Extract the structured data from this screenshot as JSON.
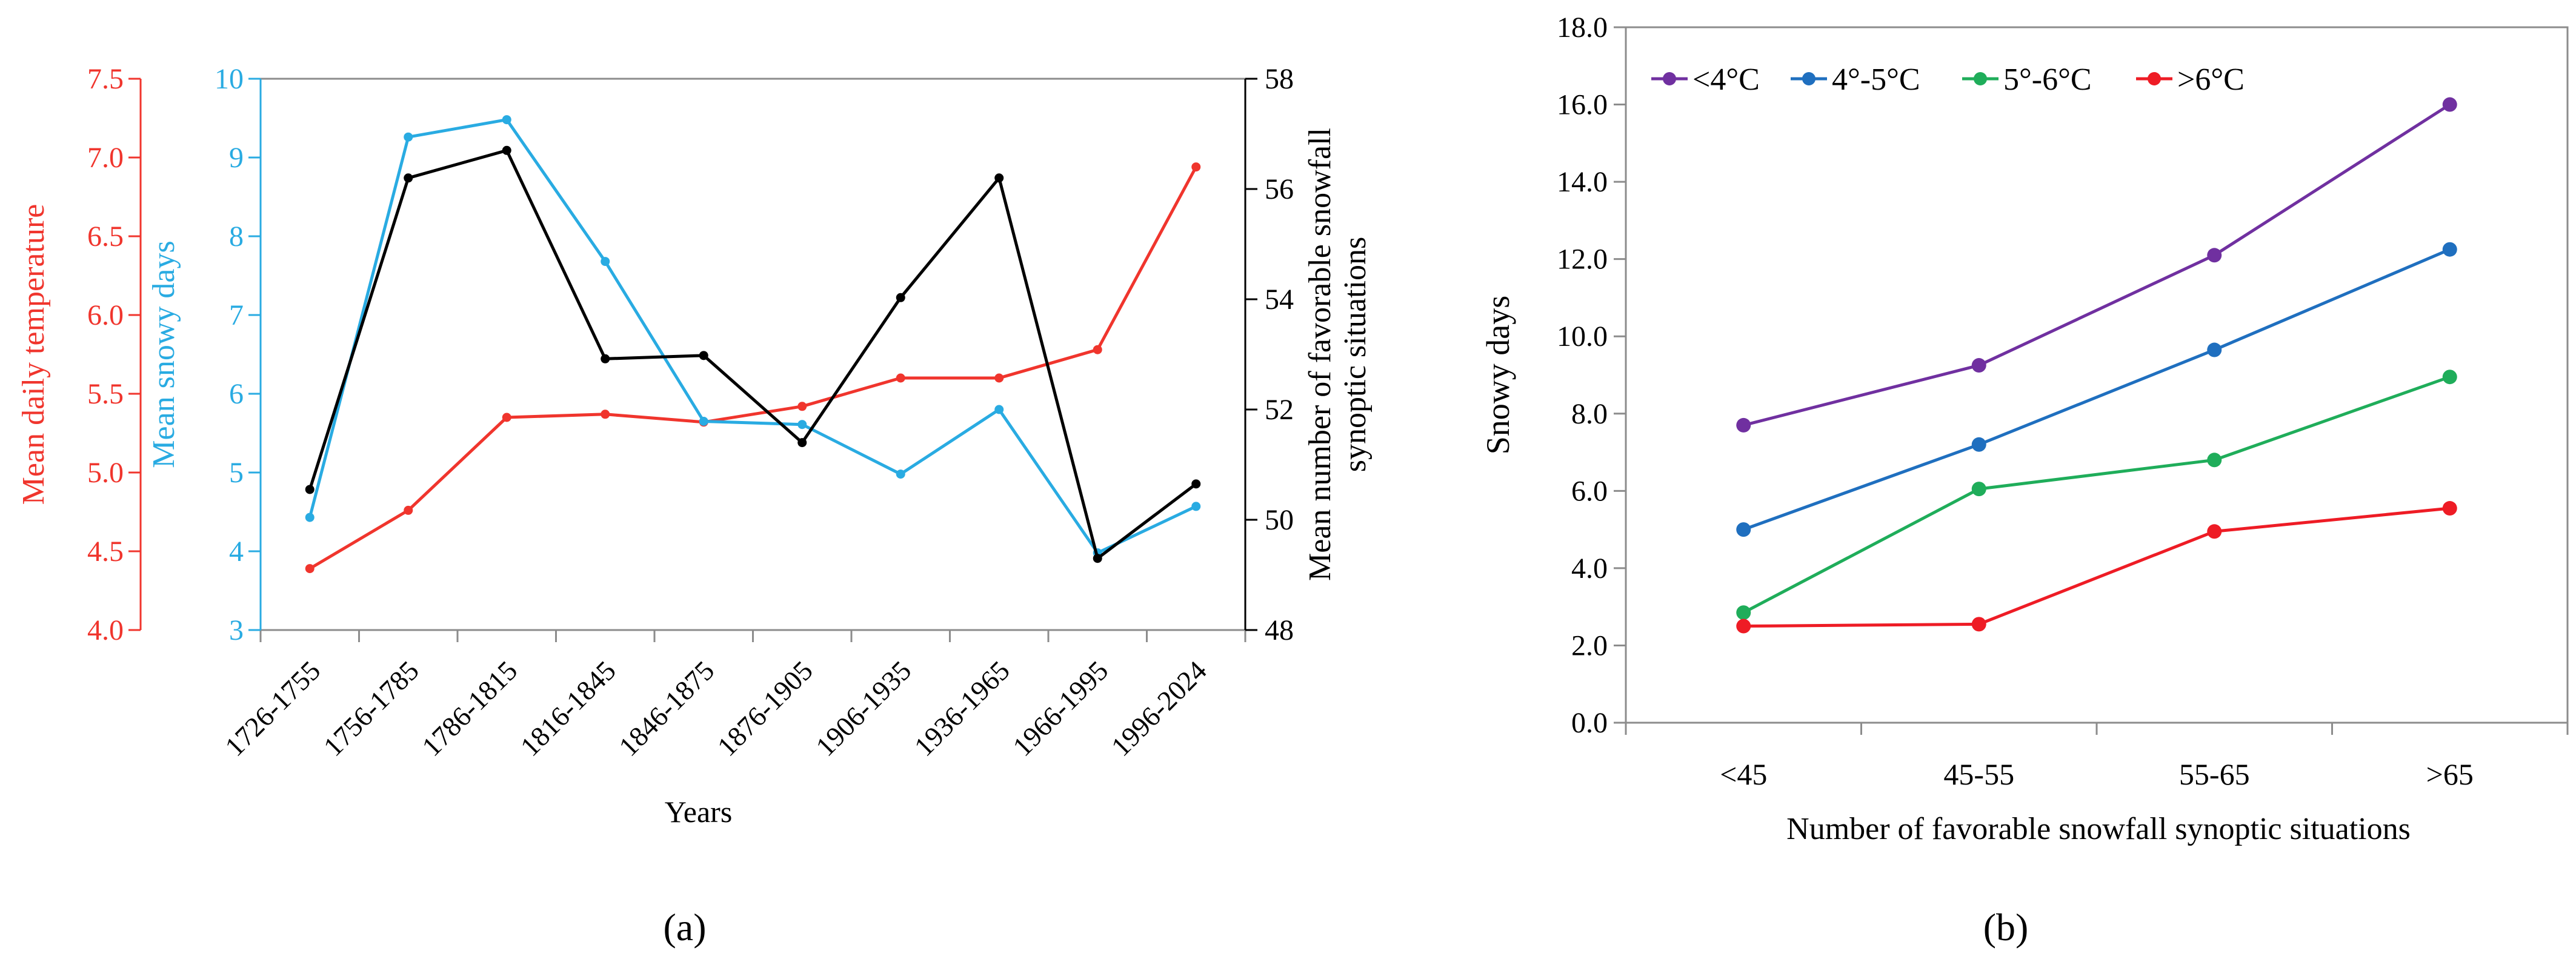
{
  "chart_data": [
    {
      "id": "a",
      "type": "line",
      "panel_label": "(a)",
      "xlabel": "Years",
      "categories": [
        "1726-1755",
        "1756-1785",
        "1786-1815",
        "1816-1845",
        "1846-1875",
        "1876-1905",
        "1906-1935",
        "1936-1965",
        "1966-1995",
        "1996-2024"
      ],
      "axes": [
        {
          "key": "temp",
          "label": "Mean daily temperature",
          "ylim": [
            4.0,
            7.5
          ],
          "step": 0.5,
          "decimals": 1,
          "color": "#f0352d"
        },
        {
          "key": "snow",
          "label": "Mean snowy days",
          "ylim": [
            3,
            10
          ],
          "step": 1,
          "decimals": 0,
          "color": "#29abe2"
        },
        {
          "key": "syn",
          "label": [
            "Mean number of favorable snowfall",
            "synoptic situations"
          ],
          "ylim": [
            48,
            58
          ],
          "step": 2,
          "decimals": 0,
          "color": "#000000"
        }
      ],
      "series": [
        {
          "name": "Mean daily temperature",
          "axis": "temp",
          "color": "#f0352d",
          "values": [
            4.39,
            4.76,
            5.35,
            5.37,
            5.32,
            5.42,
            5.6,
            5.6,
            5.78,
            6.94
          ]
        },
        {
          "name": "Mean snowy days",
          "axis": "snow",
          "color": "#29abe2",
          "values": [
            4.43,
            9.26,
            9.48,
            7.68,
            5.65,
            5.61,
            4.98,
            5.8,
            3.98,
            4.57
          ]
        },
        {
          "name": "Mean number of favorable snowfall synoptic situations",
          "axis": "syn",
          "color": "#000000",
          "values": [
            50.55,
            56.2,
            56.7,
            52.92,
            52.98,
            51.4,
            54.03,
            56.2,
            49.3,
            50.65
          ]
        }
      ]
    },
    {
      "id": "b",
      "type": "line",
      "panel_label": "(b)",
      "xlabel": "Number of favorable snowfall synoptic situations",
      "ylabel": "Snowy days",
      "categories": [
        "<45",
        "45-55",
        "55-65",
        ">65"
      ],
      "ylim": [
        0,
        18
      ],
      "ystep": 2,
      "ydecimals": 1,
      "legend_position": "top-left",
      "series": [
        {
          "name": "<4°C",
          "color": "#7030a0",
          "values": [
            7.7,
            9.25,
            12.1,
            16.0
          ]
        },
        {
          "name": "4°-5°C",
          "color": "#1f6fbf",
          "values": [
            5.0,
            7.2,
            9.65,
            12.25
          ]
        },
        {
          "name": "5°-6°C",
          "color": "#1fad5a",
          "values": [
            2.85,
            6.05,
            6.8,
            8.95
          ]
        },
        {
          "name": ">6°C",
          "color": "#ee1c25",
          "values": [
            2.5,
            2.55,
            4.95,
            5.55
          ]
        }
      ]
    }
  ]
}
